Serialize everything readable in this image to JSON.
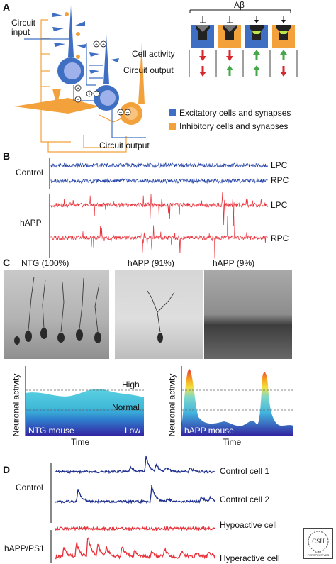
{
  "panels": {
    "a": "A",
    "b": "B",
    "c": "C",
    "d": "D"
  },
  "panel_a": {
    "circuit_input": "Circuit\ninput",
    "circuit_output": "Circuit output",
    "abeta": "Aβ",
    "cell_activity": "Cell activity",
    "circuit_output_row": "Circuit output",
    "legend": [
      {
        "label": "Excitatory cells and synapses",
        "color": "#3f6fc2"
      },
      {
        "label": "Inhibitory cells and synapses",
        "color": "#f2a13b"
      }
    ],
    "arrow_columns": [
      {
        "cell_activity": "down-red",
        "circuit_output": "down-red"
      },
      {
        "cell_activity": "down-red",
        "circuit_output": "up-green"
      },
      {
        "cell_activity": "up-green",
        "circuit_output": "up-green"
      },
      {
        "cell_activity": "up-green",
        "circuit_output": "down-red"
      }
    ]
  },
  "panel_b": {
    "groups": [
      {
        "label": "Control",
        "color": "#1f3fa6",
        "traces": [
          "LPC",
          "RPC"
        ]
      },
      {
        "label": "hAPP",
        "color": "#e8313a",
        "traces": [
          "LPC",
          "RPC"
        ]
      }
    ]
  },
  "panel_c": {
    "micrograph_labels": [
      "NTG (100%)",
      "hAPP (91%)",
      "hAPP (9%)"
    ],
    "left_plot": {
      "ylabel": "Neuronal activity",
      "xlabel": "Time",
      "high": "High",
      "normal": "Normal",
      "low": "Low",
      "caption": "NTG mouse"
    },
    "right_plot": {
      "ylabel": "Neuronal activity",
      "xlabel": "Time",
      "caption": "hAPP mouse"
    }
  },
  "panel_d": {
    "groups": [
      {
        "label": "Control",
        "color": "#1f2f8f",
        "cells": [
          "Control cell 1",
          "Control cell 2"
        ]
      },
      {
        "label": "hAPP/PS1",
        "color": "#e8313a",
        "cells": [
          "Hypoactive cell",
          "Hyperactive cell"
        ]
      }
    ],
    "logo": "CSH PERSPECTIVES"
  },
  "colors": {
    "excitatory": "#3f6fc2",
    "inhibitory": "#f2a13b",
    "control_trace": "#1f3fa6",
    "happ_trace": "#e8313a"
  }
}
